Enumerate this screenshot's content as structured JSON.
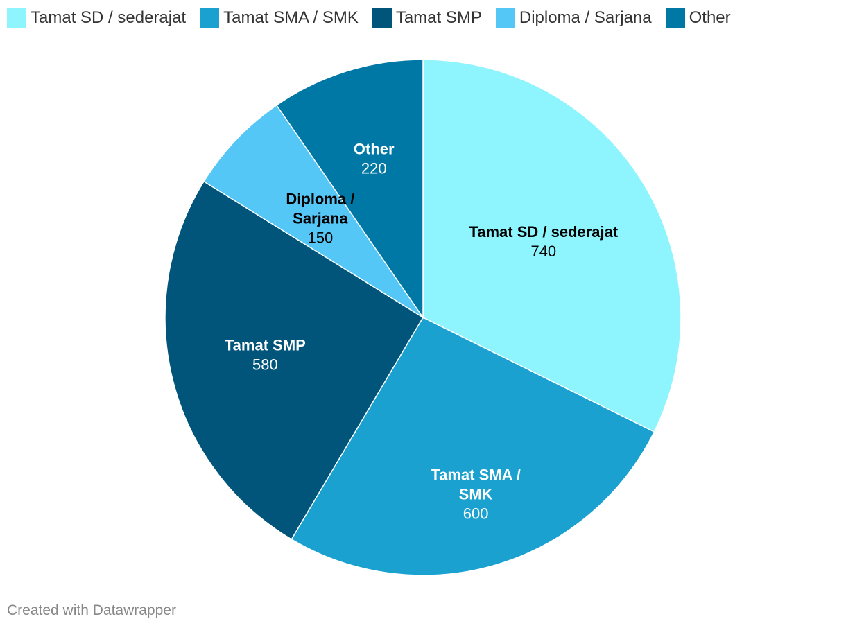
{
  "chart_data": {
    "type": "pie",
    "categories": [
      "Tamat SD / sederajat",
      "Tamat SMA / SMK",
      "Tamat SMP",
      "Diploma / Sarjana",
      "Other"
    ],
    "values": [
      740,
      600,
      580,
      150,
      220
    ],
    "colors": [
      "#8ef4fd",
      "#1aa1cf",
      "#01557b",
      "#55c7f7",
      "#0078a5"
    ],
    "label_text_colors": [
      "#000000",
      "#ffffff",
      "#ffffff",
      "#000000",
      "#ffffff"
    ],
    "slice_labels": [
      {
        "name_lines": [
          "Tamat SD / sederajat"
        ],
        "value": "740"
      },
      {
        "name_lines": [
          "Tamat SMA /",
          "SMK"
        ],
        "value": "600"
      },
      {
        "name_lines": [
          "Tamat SMP"
        ],
        "value": "580"
      },
      {
        "name_lines": [
          "Diploma /",
          "Sarjana"
        ],
        "value": "150"
      },
      {
        "name_lines": [
          "Other"
        ],
        "value": "220"
      }
    ],
    "legend": {
      "placement": "top-left",
      "items": [
        "Tamat SD / sederajat",
        "Tamat SMA / SMK",
        "Tamat SMP",
        "Diploma / Sarjana",
        "Other"
      ]
    }
  },
  "footer": {
    "credit": "Created with Datawrapper"
  }
}
